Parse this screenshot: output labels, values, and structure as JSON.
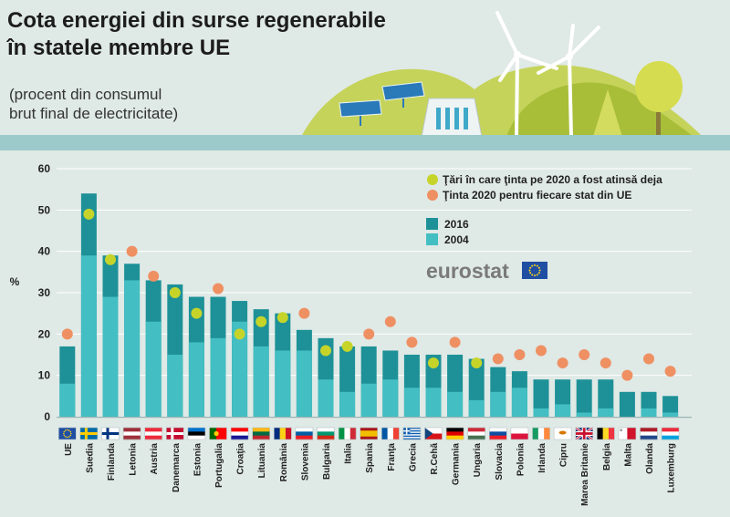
{
  "header": {
    "title_line1": "Cota energiei din surse regenerabile",
    "title_line2": "în statele membre UE",
    "subtitle_line1": "(procent din consumul",
    "subtitle_line2": "brut final de electricitate)"
  },
  "brand": {
    "logo_text": "eurostat"
  },
  "colors": {
    "background": "#dfe9e6",
    "band": "#9ccacb",
    "bar_2016": "#1d9197",
    "bar_2004": "#43bec2",
    "target_met": "#c6d42a",
    "target_2020": "#ef9063",
    "hill_light": "#c5d35a",
    "hill_dark": "#a8be38",
    "eu_blue": "#1f4ea3",
    "eu_star": "#ffd617"
  },
  "chart_data": {
    "type": "bar",
    "title": "Cota energiei din surse regenerabile în statele membre UE",
    "ylabel": "%",
    "ylim": [
      0,
      60
    ],
    "yticks": [
      0,
      10,
      20,
      30,
      40,
      50,
      60
    ],
    "grid": true,
    "legend_position": "top-right",
    "legend": {
      "met_label": "Ţări în care ţinta pe 2020 a fost atinsă deja",
      "target_label": "Ţinta 2020 pentru fiecare stat din UE",
      "series_2016_label": "2016",
      "series_2004_label": "2004"
    },
    "categories": [
      "UE",
      "Suedia",
      "Finlanda",
      "Letonia",
      "Austria",
      "Danemarca",
      "Estonia",
      "Portugalia",
      "Croaţia",
      "Lituania",
      "România",
      "Slovenia",
      "Bulgaria",
      "Italia",
      "Spania",
      "Franţa",
      "Grecia",
      "R.Cehă",
      "Germania",
      "Ungaria",
      "Slovacia",
      "Polonia",
      "Irlanda",
      "Cipru",
      "Marea Britanie",
      "Belgia",
      "Malta",
      "Olanda",
      "Luxemburg"
    ],
    "series": [
      {
        "name": "2016",
        "values": [
          17,
          54,
          39,
          37,
          33,
          32,
          29,
          29,
          28,
          26,
          25,
          21,
          19,
          17,
          17,
          16,
          15,
          15,
          15,
          14,
          12,
          11,
          9,
          9,
          9,
          9,
          6,
          6,
          5
        ]
      },
      {
        "name": "2004",
        "values": [
          8,
          39,
          29,
          33,
          23,
          15,
          18,
          19,
          23,
          17,
          16,
          16,
          9,
          6,
          8,
          9,
          7,
          7,
          6,
          4,
          6,
          7,
          2,
          3,
          1,
          2,
          0,
          2,
          1
        ]
      }
    ],
    "targets_2020": [
      20,
      49,
      38,
      40,
      34,
      30,
      25,
      31,
      20,
      23,
      24,
      25,
      16,
      17,
      20,
      23,
      18,
      13,
      18,
      13,
      14,
      15,
      16,
      13,
      15,
      13,
      10,
      14,
      11
    ],
    "target_met": [
      false,
      true,
      true,
      false,
      false,
      true,
      true,
      false,
      true,
      true,
      true,
      false,
      true,
      true,
      false,
      false,
      false,
      true,
      false,
      true,
      false,
      false,
      false,
      false,
      false,
      false,
      false,
      false,
      false
    ]
  }
}
